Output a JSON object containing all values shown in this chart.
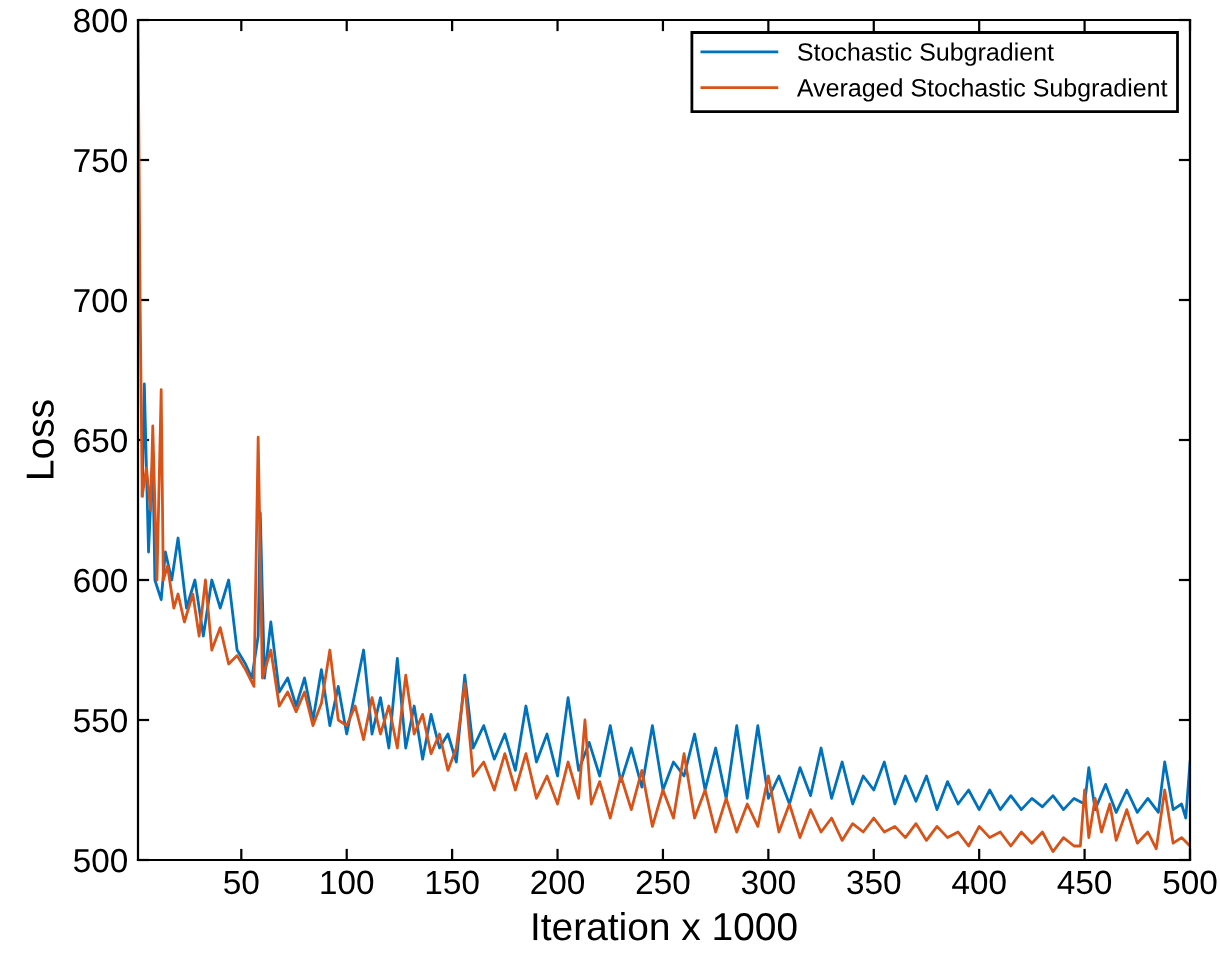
{
  "chart_data": {
    "type": "line",
    "xlabel": "Iteration x 1000",
    "ylabel": "Loss",
    "xlim": [
      1,
      500
    ],
    "ylim": [
      500,
      800
    ],
    "xticks": [
      50,
      100,
      150,
      200,
      250,
      300,
      350,
      400,
      450,
      500
    ],
    "yticks": [
      500,
      550,
      600,
      650,
      700,
      750,
      800
    ],
    "grid": false,
    "legend": "top right",
    "marker": "none",
    "line_style": "solid",
    "series": [
      {
        "name": "Stochastic Subgradient",
        "color": "#0072bd",
        "x": [
          3,
          4,
          6,
          8,
          9,
          12,
          14,
          17,
          20,
          24,
          28,
          32,
          36,
          40,
          44,
          48,
          52,
          55,
          58,
          59,
          61,
          64,
          68,
          72,
          76,
          80,
          84,
          88,
          92,
          96,
          100,
          104,
          108,
          112,
          116,
          120,
          124,
          128,
          132,
          136,
          140,
          144,
          148,
          152,
          156,
          160,
          165,
          170,
          175,
          180,
          185,
          190,
          195,
          200,
          205,
          210,
          215,
          220,
          225,
          230,
          235,
          240,
          245,
          250,
          255,
          260,
          265,
          270,
          275,
          280,
          285,
          290,
          295,
          300,
          305,
          310,
          315,
          320,
          325,
          330,
          335,
          340,
          345,
          350,
          355,
          360,
          365,
          370,
          375,
          380,
          385,
          390,
          395,
          400,
          405,
          410,
          415,
          420,
          425,
          430,
          435,
          440,
          445,
          450,
          452,
          455,
          460,
          465,
          470,
          475,
          480,
          485,
          488,
          492,
          496,
          498,
          500
        ],
        "values": [
          630,
          670,
          610,
          645,
          600,
          593,
          610,
          600,
          615,
          590,
          600,
          580,
          600,
          590,
          600,
          575,
          570,
          565,
          580,
          624,
          565,
          585,
          560,
          565,
          555,
          565,
          550,
          568,
          548,
          562,
          545,
          560,
          575,
          545,
          558,
          540,
          572,
          540,
          555,
          536,
          552,
          540,
          545,
          535,
          566,
          540,
          548,
          536,
          545,
          532,
          555,
          535,
          545,
          530,
          558,
          532,
          542,
          530,
          548,
          528,
          540,
          526,
          548,
          525,
          535,
          530,
          545,
          525,
          540,
          522,
          548,
          522,
          548,
          522,
          530,
          520,
          533,
          523,
          540,
          522,
          535,
          520,
          530,
          525,
          535,
          520,
          530,
          521,
          530,
          518,
          528,
          520,
          525,
          518,
          525,
          518,
          523,
          518,
          522,
          519,
          523,
          518,
          522,
          520,
          533,
          518,
          527,
          517,
          525,
          517,
          522,
          517,
          535,
          518,
          520,
          515,
          535
        ]
      },
      {
        "name": "Averaged Stochastic Subgradient",
        "color": "#d95319",
        "x": [
          1,
          2,
          3,
          5,
          7,
          8,
          10,
          12,
          13,
          15,
          18,
          20,
          23,
          27,
          30,
          33,
          36,
          40,
          44,
          48,
          52,
          56,
          58,
          60,
          64,
          68,
          72,
          76,
          80,
          84,
          88,
          92,
          96,
          100,
          104,
          108,
          112,
          116,
          120,
          124,
          128,
          132,
          136,
          140,
          144,
          148,
          152,
          156,
          160,
          165,
          170,
          175,
          180,
          185,
          190,
          195,
          200,
          205,
          210,
          213,
          216,
          220,
          225,
          230,
          235,
          240,
          245,
          250,
          255,
          260,
          265,
          270,
          275,
          280,
          285,
          290,
          295,
          300,
          305,
          310,
          315,
          320,
          325,
          330,
          335,
          340,
          345,
          350,
          355,
          360,
          365,
          370,
          375,
          380,
          385,
          390,
          395,
          400,
          405,
          410,
          415,
          420,
          425,
          430,
          435,
          440,
          445,
          448,
          450,
          452,
          455,
          458,
          462,
          465,
          470,
          475,
          480,
          484,
          488,
          492,
          496,
          500
        ],
        "values": [
          800,
          700,
          630,
          640,
          625,
          655,
          600,
          668,
          600,
          605,
          590,
          595,
          585,
          595,
          580,
          600,
          575,
          583,
          570,
          573,
          568,
          562,
          651,
          565,
          575,
          555,
          560,
          553,
          560,
          548,
          556,
          575,
          550,
          548,
          555,
          543,
          558,
          545,
          555,
          540,
          566,
          545,
          552,
          538,
          545,
          532,
          540,
          563,
          530,
          535,
          525,
          538,
          525,
          538,
          522,
          530,
          520,
          535,
          522,
          550,
          520,
          528,
          515,
          530,
          518,
          532,
          512,
          525,
          515,
          538,
          515,
          525,
          510,
          522,
          510,
          520,
          512,
          530,
          510,
          520,
          508,
          518,
          510,
          515,
          507,
          513,
          510,
          515,
          510,
          512,
          508,
          513,
          507,
          512,
          508,
          510,
          505,
          512,
          508,
          510,
          505,
          510,
          506,
          510,
          503,
          508,
          505,
          505,
          525,
          508,
          522,
          510,
          520,
          507,
          518,
          506,
          510,
          504,
          525,
          506,
          508,
          505
        ]
      }
    ]
  }
}
